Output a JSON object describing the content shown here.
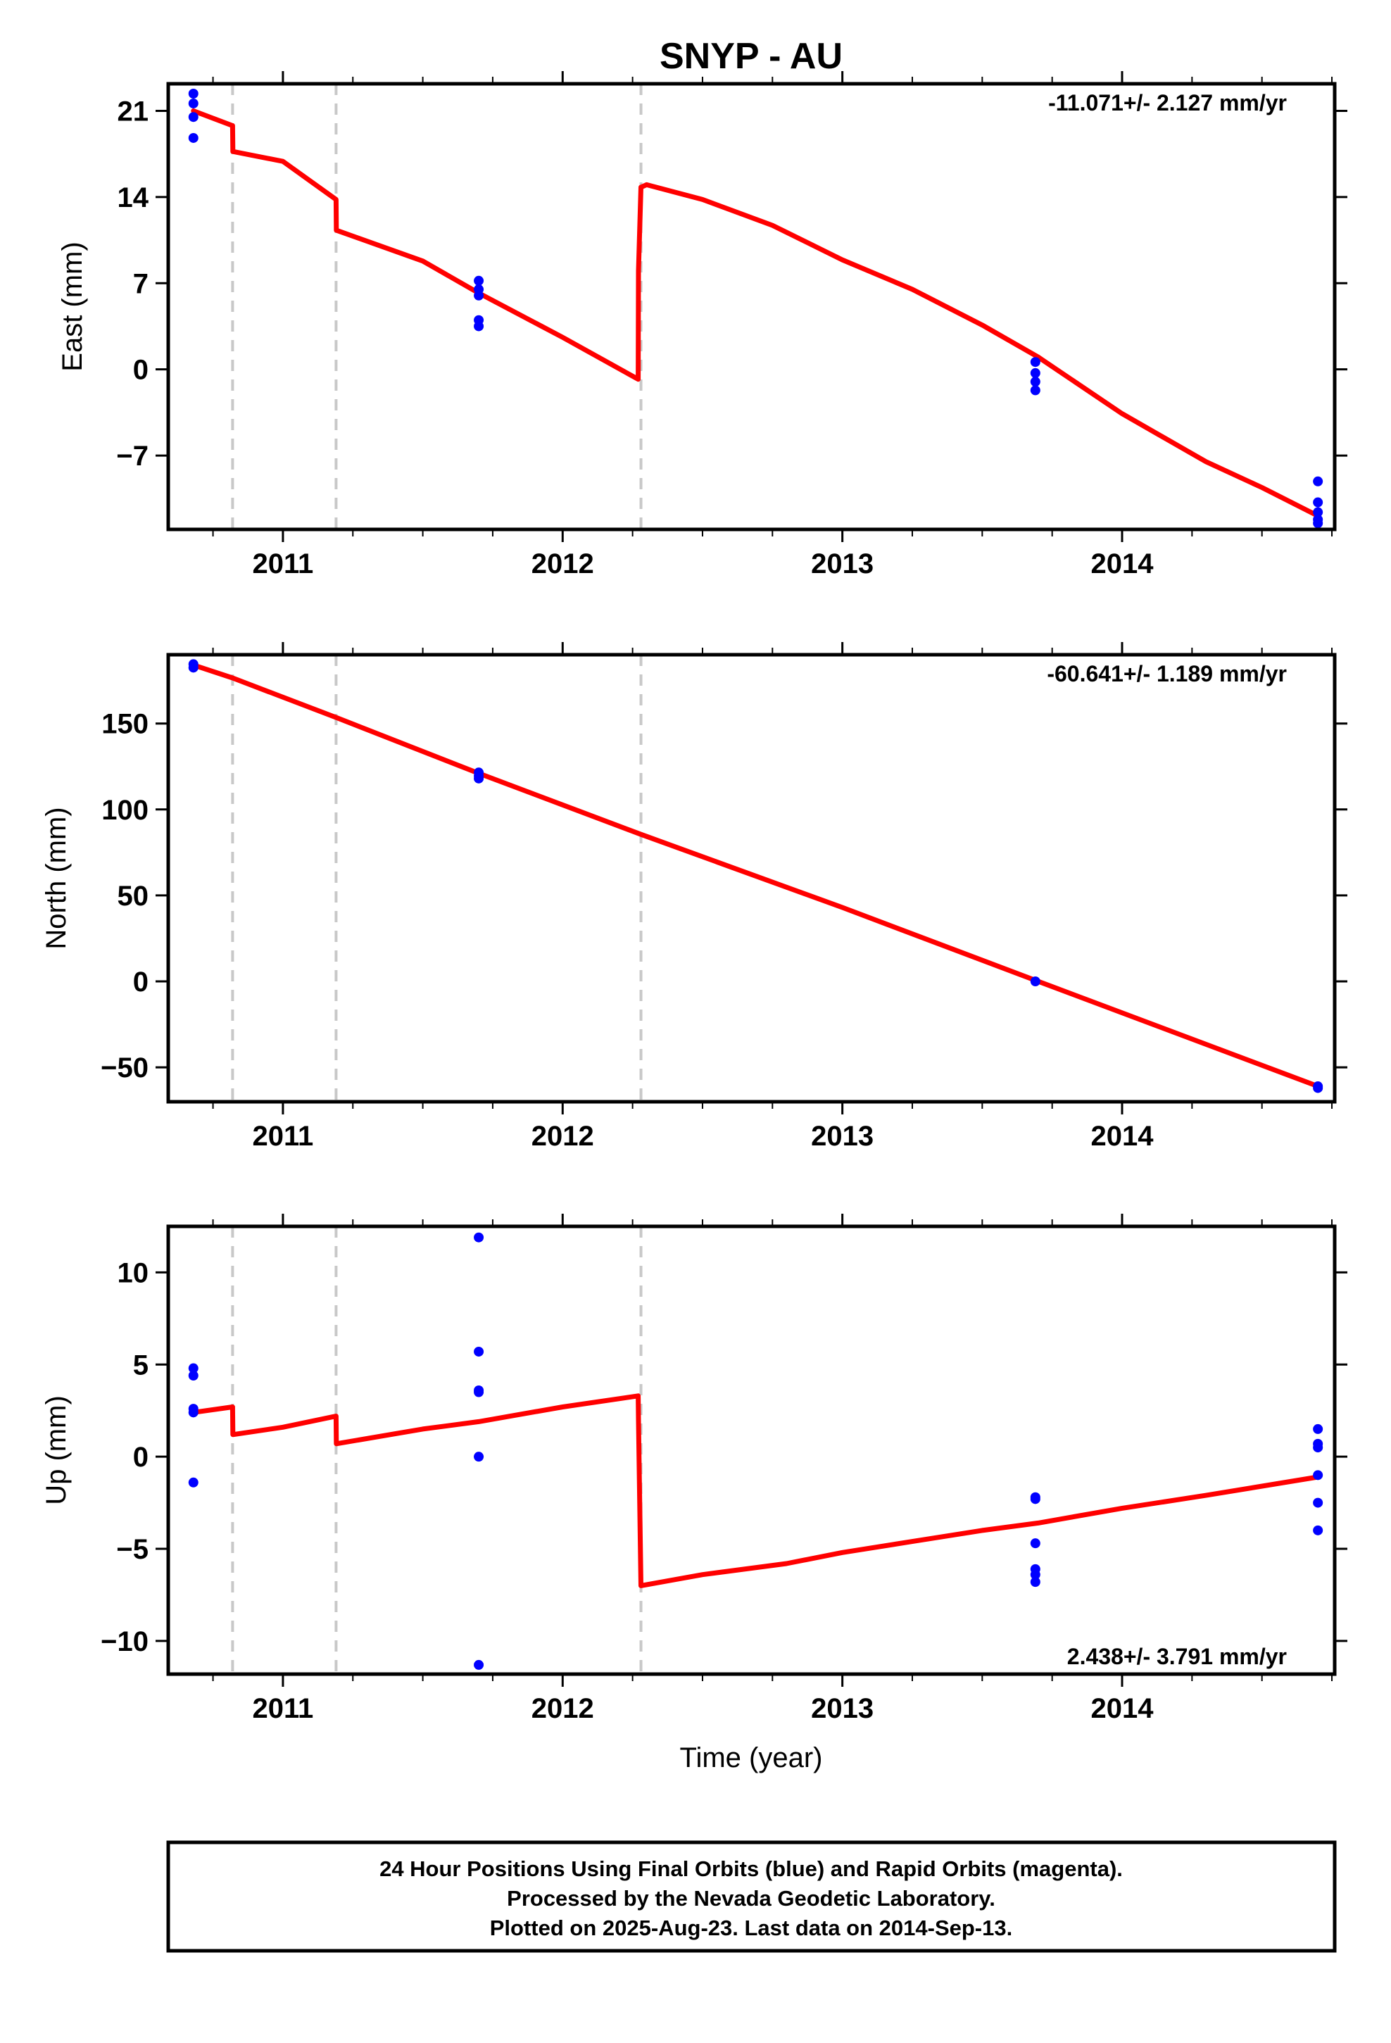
{
  "title": "SNYP - AU",
  "xlabel": "Time (year)",
  "x_ticks": [
    "2011",
    "2012",
    "2013",
    "2014"
  ],
  "colors": {
    "fit": "#ff0000",
    "points": "#0000ff",
    "offsets": "#c8c8c8",
    "frame": "#000000"
  },
  "chart_data": [
    {
      "type": "scatter",
      "name": "east",
      "ylabel": "East (mm)",
      "rate": "-11.071+/- 2.127 mm/yr",
      "xlim": [
        2010.59,
        2014.76
      ],
      "ylim": [
        -13,
        23.2
      ],
      "yticks": [
        21,
        14,
        7,
        0,
        -7
      ],
      "ytick_labels": [
        "21",
        "14",
        "7",
        "0",
        "−7"
      ],
      "offsets": [
        2010.82,
        2011.19,
        2012.28
      ],
      "points": [
        [
          2010.68,
          22.4
        ],
        [
          2010.68,
          21.6
        ],
        [
          2010.68,
          20.5
        ],
        [
          2010.68,
          18.8
        ],
        [
          2011.7,
          7.2
        ],
        [
          2011.7,
          6.5
        ],
        [
          2011.7,
          6.0
        ],
        [
          2011.7,
          4.0
        ],
        [
          2011.7,
          3.5
        ],
        [
          2013.69,
          0.6
        ],
        [
          2013.69,
          -0.3
        ],
        [
          2013.69,
          -1.0
        ],
        [
          2013.69,
          -1.7
        ],
        [
          2014.7,
          -9.1
        ],
        [
          2014.7,
          -10.8
        ],
        [
          2014.7,
          -11.6
        ],
        [
          2014.7,
          -12.2
        ],
        [
          2014.7,
          -12.5
        ]
      ],
      "fit": [
        [
          2010.68,
          21.0
        ],
        [
          2010.82,
          19.8
        ],
        [
          2010.821,
          17.7
        ],
        [
          2011.0,
          16.9
        ],
        [
          2011.19,
          13.8
        ],
        [
          2011.191,
          11.3
        ],
        [
          2011.5,
          8.8
        ],
        [
          2011.7,
          6.2
        ],
        [
          2012.0,
          2.6
        ],
        [
          2012.27,
          -0.8
        ],
        [
          2012.271,
          8.0
        ],
        [
          2012.28,
          14.8
        ],
        [
          2012.3,
          15.0
        ],
        [
          2012.5,
          13.8
        ],
        [
          2012.75,
          11.7
        ],
        [
          2013.0,
          8.9
        ],
        [
          2013.25,
          6.5
        ],
        [
          2013.5,
          3.6
        ],
        [
          2013.7,
          1.0
        ],
        [
          2014.0,
          -3.6
        ],
        [
          2014.3,
          -7.5
        ],
        [
          2014.5,
          -9.6
        ],
        [
          2014.7,
          -11.9
        ]
      ]
    },
    {
      "type": "scatter",
      "name": "north",
      "ylabel": "North (mm)",
      "rate": "-60.641+/- 1.189 mm/yr",
      "xlim": [
        2010.59,
        2014.76
      ],
      "ylim": [
        -70,
        190
      ],
      "yticks": [
        150,
        100,
        50,
        0,
        -50
      ],
      "ytick_labels": [
        "150",
        "100",
        "50",
        "0",
        "−50"
      ],
      "offsets": [
        2010.82,
        2011.19,
        2012.28
      ],
      "points": [
        [
          2010.68,
          184.5
        ],
        [
          2010.68,
          182.5
        ],
        [
          2011.7,
          121.5
        ],
        [
          2011.7,
          119.5
        ],
        [
          2011.7,
          118.0
        ],
        [
          2013.69,
          0.0
        ],
        [
          2014.7,
          -61.0
        ],
        [
          2014.7,
          -62.0
        ]
      ],
      "fit": [
        [
          2010.68,
          184.0
        ],
        [
          2010.82,
          176.5
        ],
        [
          2011.19,
          153.5
        ],
        [
          2011.7,
          121.0
        ],
        [
          2012.28,
          85.5
        ],
        [
          2013.0,
          43.0
        ],
        [
          2013.7,
          0.0
        ],
        [
          2014.7,
          -61.0
        ]
      ]
    },
    {
      "type": "scatter",
      "name": "up",
      "ylabel": "Up (mm)",
      "rate": "2.438+/- 3.791 mm/yr",
      "xlim": [
        2010.59,
        2014.76
      ],
      "ylim": [
        -11.8,
        12.5
      ],
      "yticks": [
        10,
        5,
        0,
        -5,
        -10
      ],
      "ytick_labels": [
        "10",
        "5",
        "0",
        "−5",
        "−10"
      ],
      "offsets": [
        2010.82,
        2011.19,
        2012.28
      ],
      "points": [
        [
          2010.68,
          4.8
        ],
        [
          2010.68,
          4.4
        ],
        [
          2010.68,
          2.6
        ],
        [
          2010.68,
          2.4
        ],
        [
          2010.68,
          -1.4
        ],
        [
          2011.7,
          11.9
        ],
        [
          2011.7,
          5.7
        ],
        [
          2011.7,
          3.6
        ],
        [
          2011.7,
          3.5
        ],
        [
          2011.7,
          0.0
        ],
        [
          2011.7,
          -11.3
        ],
        [
          2013.69,
          -2.2
        ],
        [
          2013.69,
          -2.3
        ],
        [
          2013.69,
          -4.7
        ],
        [
          2013.69,
          -6.1
        ],
        [
          2013.69,
          -6.4
        ],
        [
          2013.69,
          -6.8
        ],
        [
          2014.7,
          1.5
        ],
        [
          2014.7,
          0.7
        ],
        [
          2014.7,
          0.5
        ],
        [
          2014.7,
          -1.0
        ],
        [
          2014.7,
          -2.5
        ],
        [
          2014.7,
          -4.0
        ]
      ],
      "fit": [
        [
          2010.68,
          2.4
        ],
        [
          2010.82,
          2.7
        ],
        [
          2010.821,
          1.2
        ],
        [
          2011.0,
          1.6
        ],
        [
          2011.19,
          2.2
        ],
        [
          2011.191,
          0.7
        ],
        [
          2011.5,
          1.5
        ],
        [
          2011.7,
          1.9
        ],
        [
          2012.0,
          2.7
        ],
        [
          2012.27,
          3.3
        ],
        [
          2012.271,
          2.0
        ],
        [
          2012.28,
          -7.0
        ],
        [
          2012.5,
          -6.4
        ],
        [
          2012.8,
          -5.8
        ],
        [
          2013.0,
          -5.2
        ],
        [
          2013.25,
          -4.6
        ],
        [
          2013.5,
          -4.0
        ],
        [
          2013.7,
          -3.6
        ],
        [
          2014.0,
          -2.8
        ],
        [
          2014.3,
          -2.1
        ],
        [
          2014.7,
          -1.1
        ]
      ]
    }
  ],
  "footer": {
    "line1": "24 Hour Positions Using Final Orbits (blue) and Rapid Orbits (magenta).",
    "line2": "Processed by the Nevada Geodetic Laboratory.",
    "line3": "Plotted on 2025-Aug-23. Last data on 2014-Sep-13."
  }
}
